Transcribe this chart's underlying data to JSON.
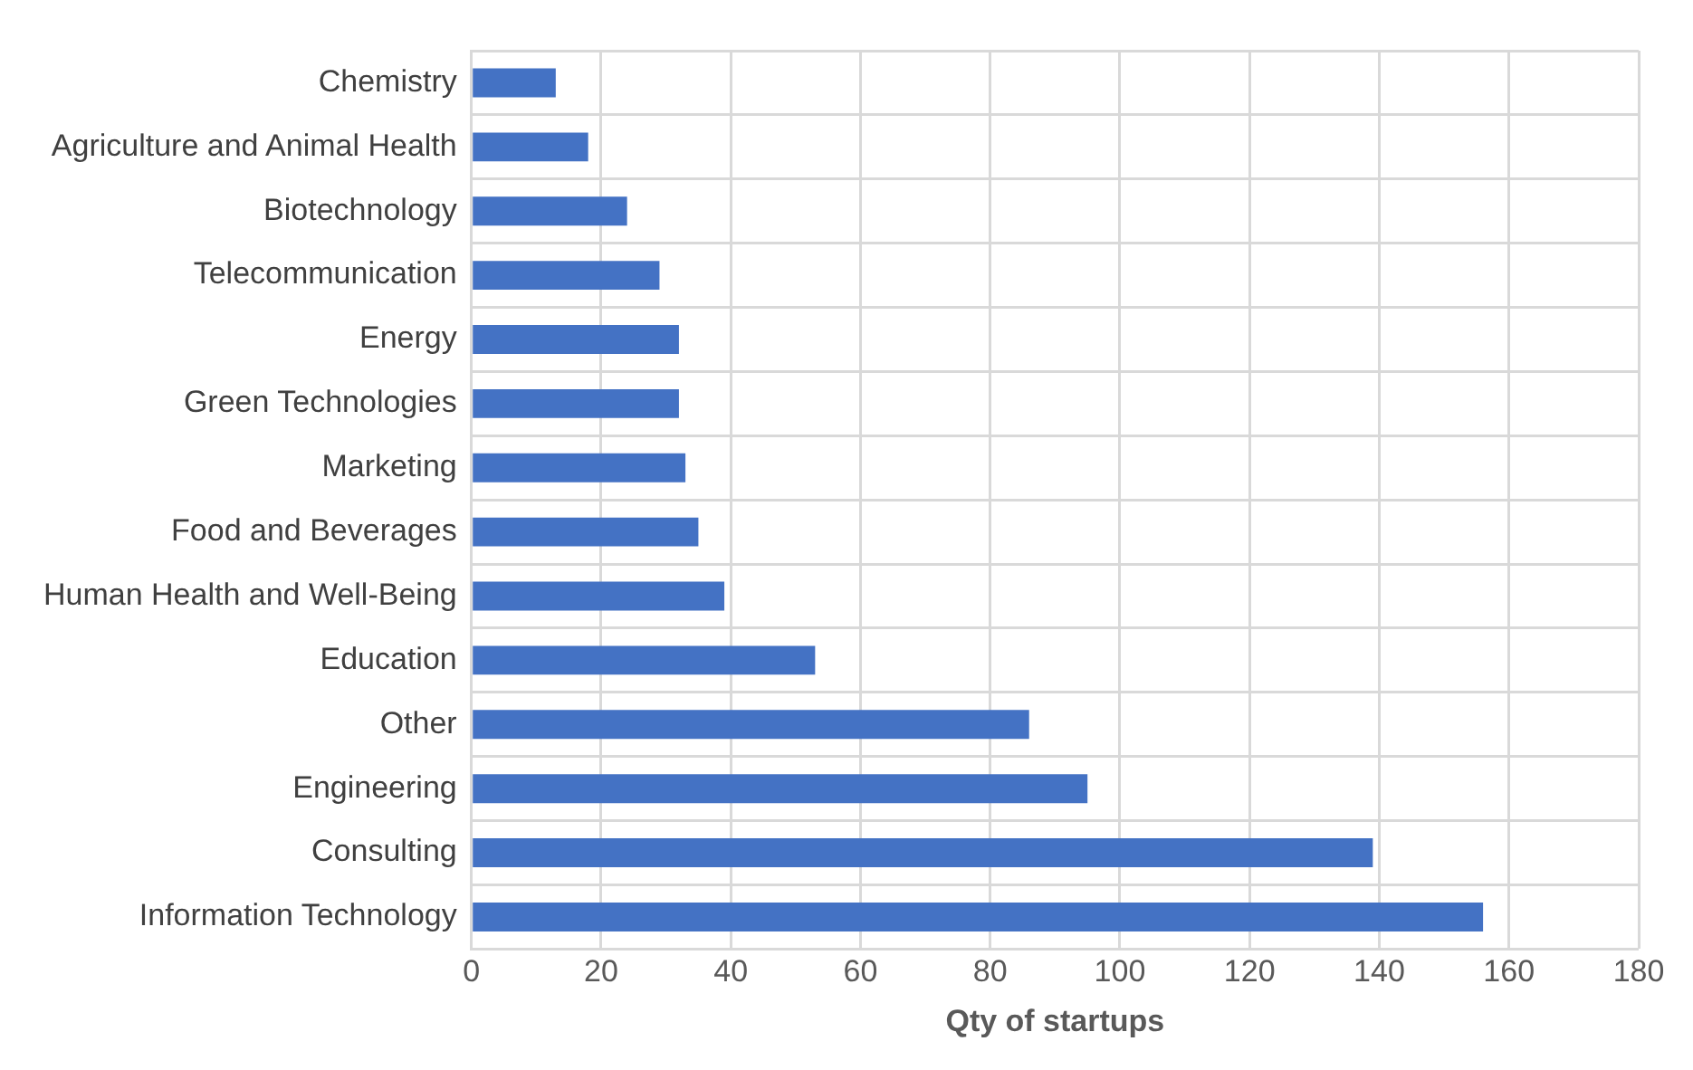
{
  "chart_data": {
    "type": "bar",
    "orientation": "horizontal",
    "xlabel": "Qty of startups",
    "categories": [
      "Chemistry",
      "Agriculture and Animal Health",
      "Biotechnology",
      "Telecommunication",
      "Energy",
      "Green Technologies",
      "Marketing",
      "Food and Beverages",
      "Human Health and Well-Being",
      "Education",
      "Other",
      "Engineering",
      "Consulting",
      "Information Technology"
    ],
    "values": [
      13,
      18,
      24,
      29,
      32,
      32,
      33,
      35,
      39,
      53,
      86,
      95,
      139,
      156
    ],
    "color": "#4472c4",
    "xlim": [
      0,
      180
    ],
    "xticks": [
      0,
      20,
      40,
      60,
      80,
      100,
      120,
      140,
      160,
      180
    ],
    "grid": true,
    "legend": false
  }
}
